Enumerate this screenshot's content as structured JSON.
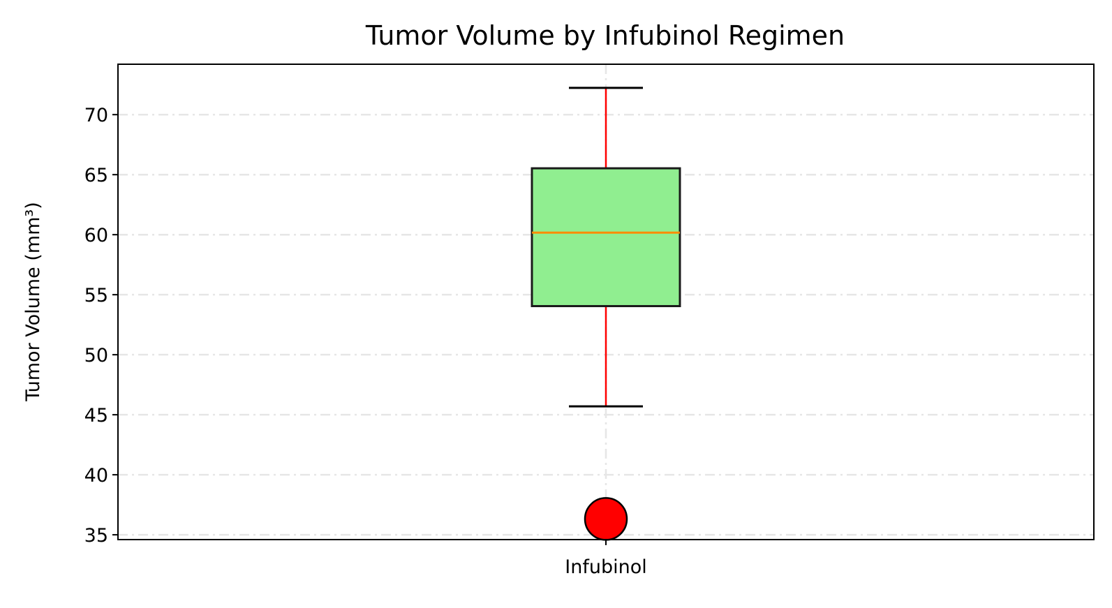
{
  "chart_data": {
    "type": "box",
    "title": "Tumor Volume by Infubinol Regimen",
    "xlabel": "",
    "ylabel": "Tumor Volume (mm³)",
    "ylim": [
      34.6,
      74.2
    ],
    "yticks": [
      35,
      40,
      45,
      50,
      55,
      60,
      65,
      70
    ],
    "categories": [
      "Infubinol"
    ],
    "boxes": [
      {
        "category": "Infubinol",
        "whisker_low": 45.7,
        "q1": 54.05,
        "median": 60.17,
        "q3": 65.53,
        "whisker_high": 72.23,
        "outliers": [
          36.32
        ]
      }
    ],
    "grid": true,
    "grid_style": "dash-dot",
    "colors": {
      "box_fill": "#90ee90",
      "box_edge": "#1a1a1a",
      "median": "#ff8c00",
      "whisker": "#ff0000",
      "cap": "#000000",
      "outlier_fill": "#ff0000",
      "outlier_edge": "#000000",
      "grid": "#e6e6e6"
    }
  }
}
